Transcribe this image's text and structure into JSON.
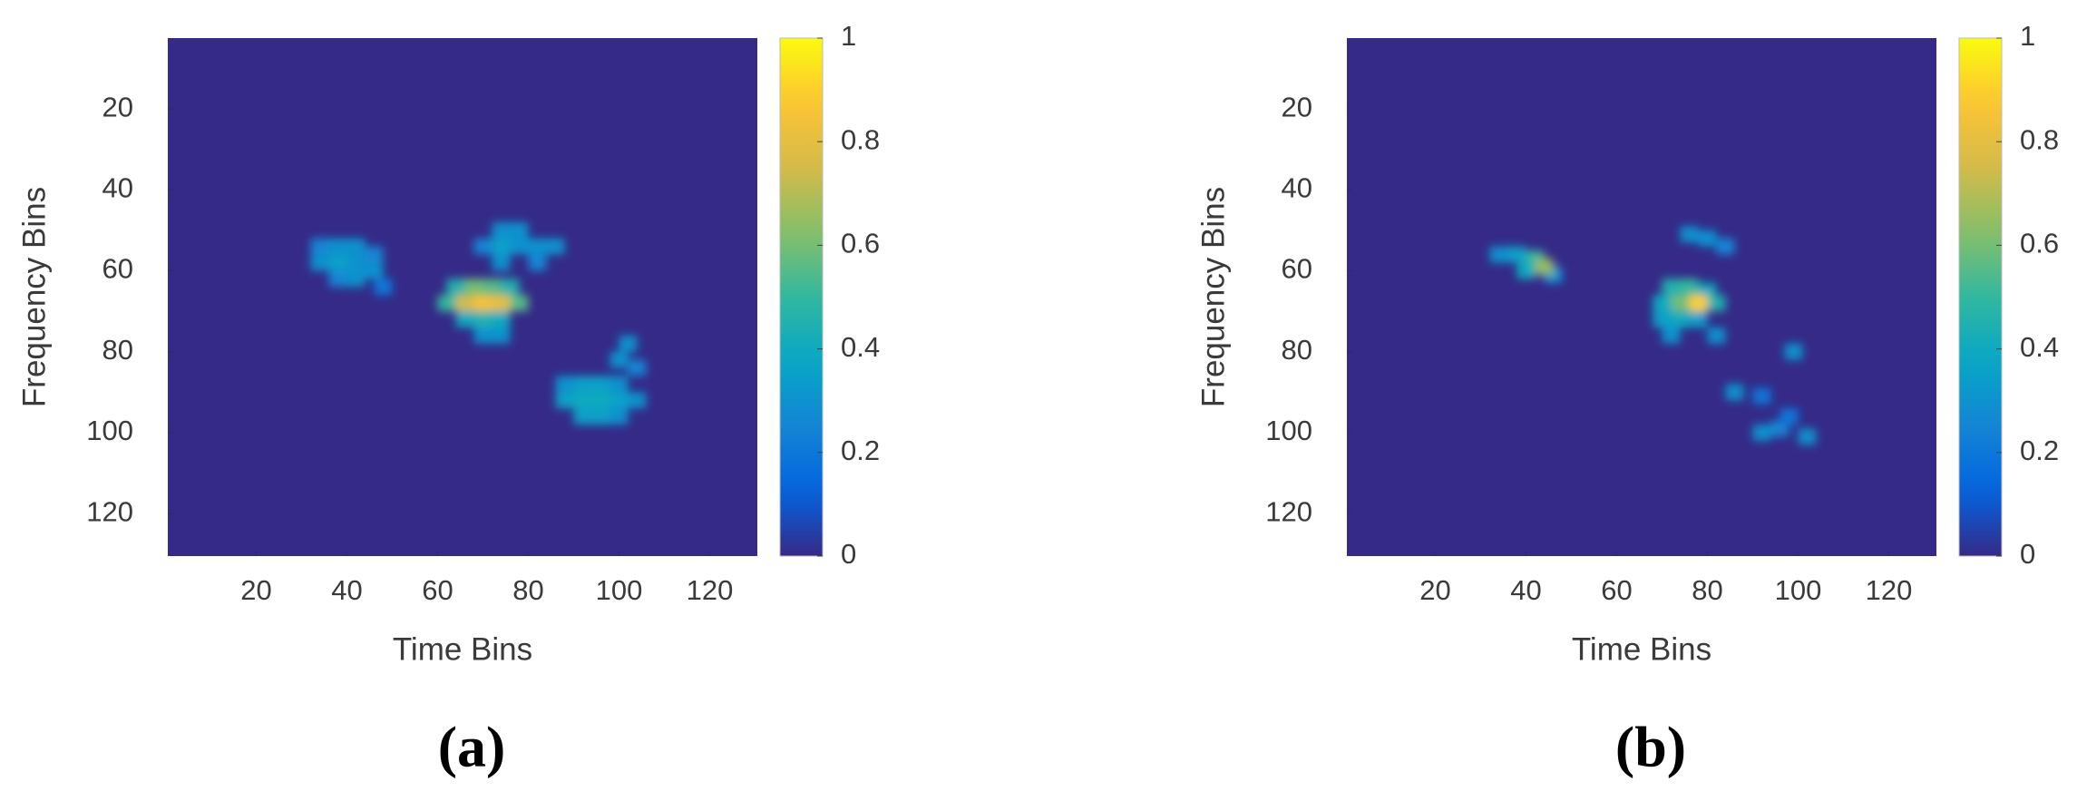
{
  "chart_data": [
    {
      "type": "heatmap",
      "label": "(a)",
      "xlabel": "Time Bins",
      "ylabel": "Frequency Bins",
      "xlim": [
        0.5,
        130.5
      ],
      "ylim": [
        2.5,
        130.5
      ],
      "y_reversed": true,
      "xticks": [
        20,
        40,
        60,
        80,
        100,
        120
      ],
      "yticks": [
        20,
        40,
        60,
        80,
        100,
        120
      ],
      "clim": [
        0,
        1
      ],
      "cticks": [
        0,
        0.2,
        0.4,
        0.6,
        0.8,
        1
      ],
      "colormap": "parula",
      "x": [
        34,
        38,
        42,
        46,
        34,
        38,
        42,
        46,
        38,
        42,
        48,
        74,
        78,
        82,
        70,
        74,
        78,
        86,
        74,
        82,
        64,
        68,
        72,
        76,
        62,
        66,
        70,
        74,
        78,
        66,
        70,
        74,
        70,
        74,
        102,
        100,
        104,
        88,
        92,
        96,
        100,
        88,
        92,
        96,
        100,
        104,
        92,
        96,
        100
      ],
      "y": [
        54,
        54,
        54,
        56,
        58,
        58,
        58,
        60,
        62,
        62,
        64,
        50,
        50,
        54,
        54,
        54,
        54,
        54,
        58,
        58,
        64,
        64,
        64,
        64,
        68,
        68,
        68,
        68,
        68,
        72,
        72,
        72,
        76,
        76,
        78,
        82,
        84,
        88,
        88,
        88,
        88,
        92,
        92,
        92,
        92,
        92,
        96,
        96,
        96
      ],
      "values": [
        0.25,
        0.3,
        0.3,
        0.25,
        0.3,
        0.35,
        0.3,
        0.3,
        0.25,
        0.3,
        0.2,
        0.3,
        0.3,
        0.3,
        0.25,
        0.35,
        0.3,
        0.3,
        0.3,
        0.25,
        0.45,
        0.6,
        0.55,
        0.45,
        0.5,
        0.75,
        0.85,
        0.8,
        0.55,
        0.4,
        0.45,
        0.4,
        0.3,
        0.3,
        0.3,
        0.3,
        0.25,
        0.3,
        0.35,
        0.35,
        0.3,
        0.35,
        0.4,
        0.4,
        0.35,
        0.3,
        0.35,
        0.35,
        0.3
      ]
    },
    {
      "type": "heatmap",
      "label": "(b)",
      "xlabel": "Time Bins",
      "ylabel": "Frequency Bins",
      "xlim": [
        0.5,
        130.5
      ],
      "ylim": [
        2.5,
        130.5
      ],
      "y_reversed": true,
      "xticks": [
        20,
        40,
        60,
        80,
        100,
        120
      ],
      "yticks": [
        20,
        40,
        60,
        80,
        100,
        120
      ],
      "clim": [
        0,
        1
      ],
      "cticks": [
        0,
        0.2,
        0.4,
        0.6,
        0.8,
        1
      ],
      "colormap": "parula",
      "x": [
        34,
        38,
        42,
        40,
        46,
        44,
        76,
        80,
        84,
        72,
        76,
        80,
        74,
        70,
        82,
        70,
        74,
        78,
        72,
        82,
        78,
        99,
        86,
        92,
        92,
        96,
        102,
        98
      ],
      "y": [
        56,
        56,
        57,
        60,
        61,
        59,
        51,
        52,
        54,
        64,
        64,
        65,
        68,
        68,
        68,
        72,
        72,
        72,
        76,
        76,
        68,
        80,
        90,
        91,
        100,
        99,
        101,
        96
      ],
      "values": [
        0.3,
        0.35,
        0.5,
        0.4,
        0.3,
        0.65,
        0.3,
        0.3,
        0.25,
        0.45,
        0.5,
        0.4,
        0.6,
        0.4,
        0.45,
        0.35,
        0.4,
        0.35,
        0.3,
        0.3,
        0.9,
        0.3,
        0.3,
        0.2,
        0.3,
        0.25,
        0.3,
        0.2
      ]
    }
  ]
}
